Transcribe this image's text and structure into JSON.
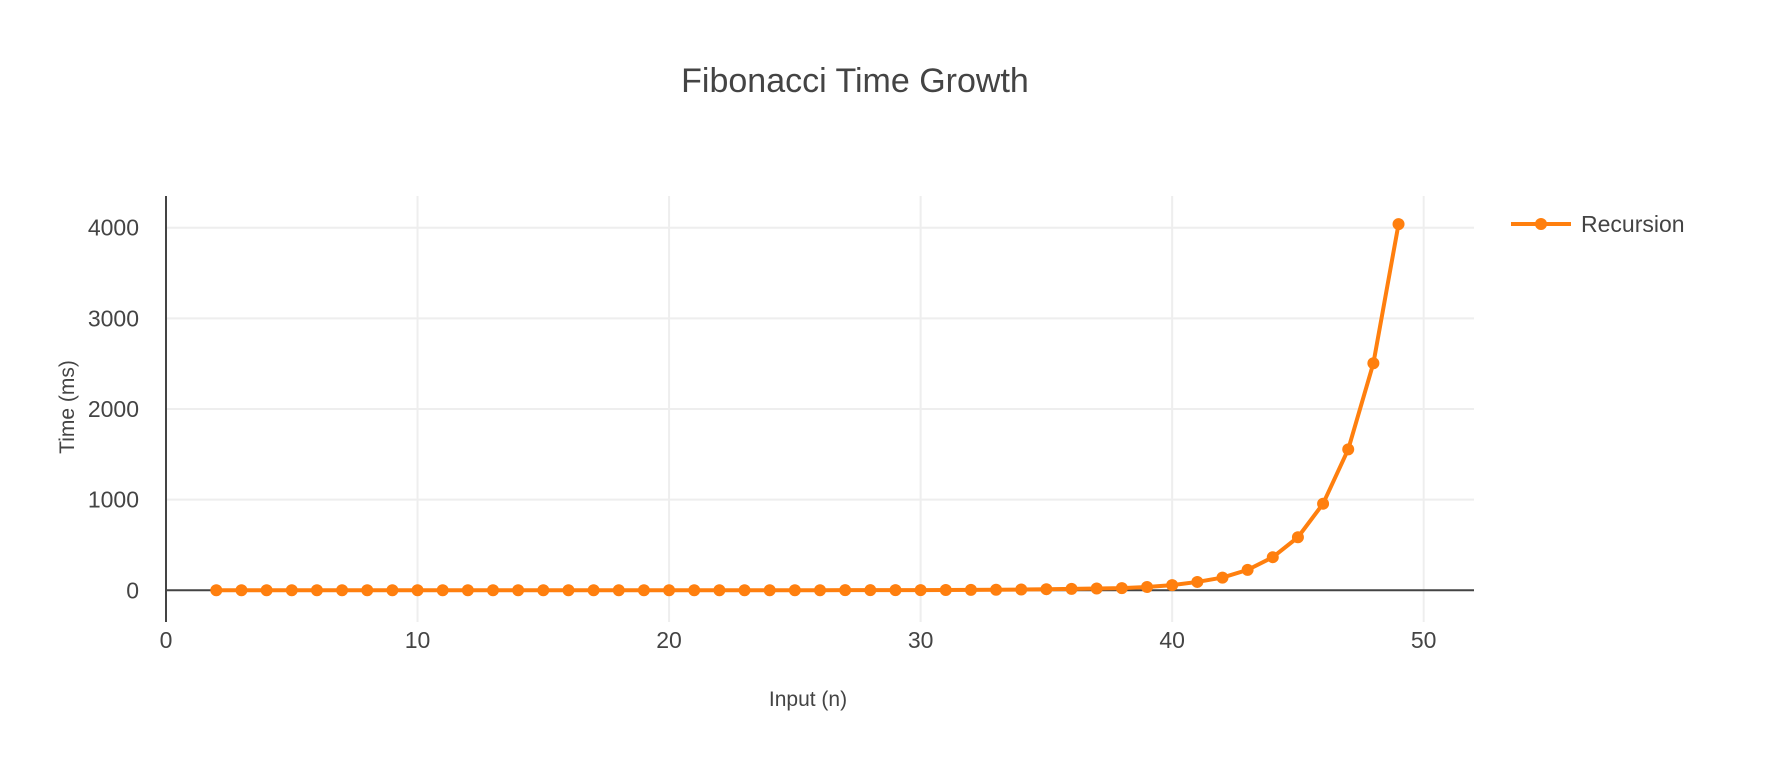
{
  "chart_data": {
    "type": "line",
    "title": "Fibonacci Time Growth",
    "xlabel": "Input (n)",
    "ylabel": "Time (ms)",
    "xlim": [
      0,
      52
    ],
    "ylim": [
      -350,
      4350
    ],
    "x_ticks": [
      0,
      10,
      20,
      30,
      40,
      50
    ],
    "x_tick_labels": [
      "0",
      "10",
      "20",
      "30",
      "40",
      "50"
    ],
    "y_ticks": [
      0,
      1000,
      2000,
      3000,
      4000
    ],
    "y_tick_labels": [
      "0",
      "1000",
      "2000",
      "3000",
      "4000"
    ],
    "grid": true,
    "legend_position": "top-right",
    "series": [
      {
        "name": "Recursion",
        "color": "#ff7f0e",
        "mode": "lines+markers",
        "x": [
          2,
          3,
          4,
          5,
          6,
          7,
          8,
          9,
          10,
          11,
          12,
          13,
          14,
          15,
          16,
          17,
          18,
          19,
          20,
          21,
          22,
          23,
          24,
          25,
          26,
          27,
          28,
          29,
          30,
          31,
          32,
          33,
          34,
          35,
          36,
          37,
          38,
          39,
          40,
          41,
          42,
          43,
          44,
          45,
          46,
          47,
          48,
          49
        ],
        "y": [
          0,
          0,
          0,
          0,
          0,
          0,
          0,
          0,
          0,
          0,
          0,
          0,
          0,
          0,
          0,
          0,
          0,
          0,
          0,
          0,
          0,
          0,
          0,
          0,
          0,
          1,
          1,
          2,
          2,
          3,
          4,
          6,
          8,
          12,
          16,
          20,
          24,
          36,
          57,
          92,
          140,
          225,
          365,
          585,
          955,
          1555,
          2505,
          4040
        ]
      }
    ]
  }
}
